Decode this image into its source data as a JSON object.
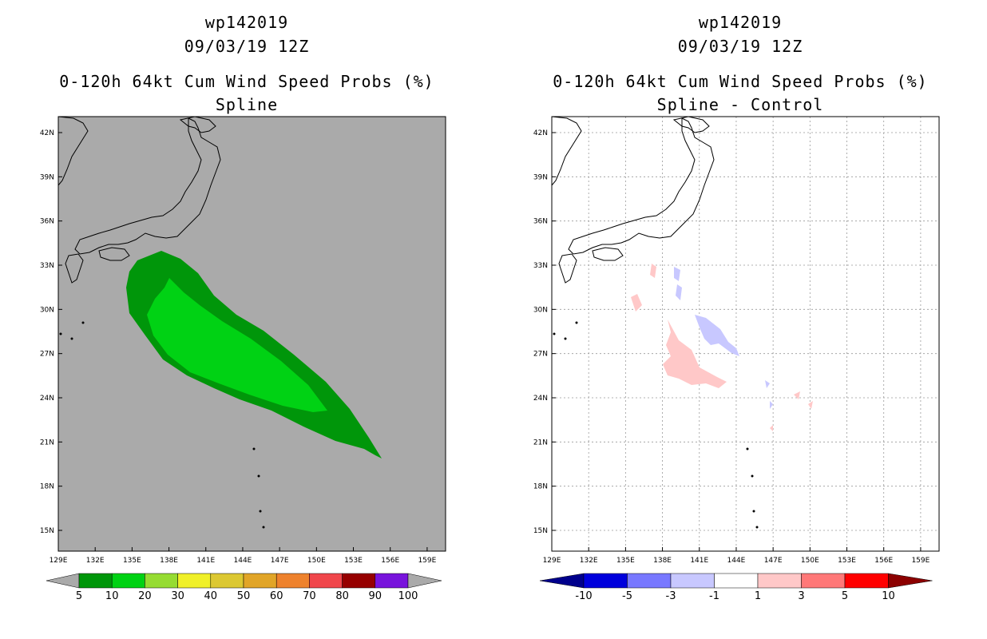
{
  "left": {
    "title_storm": "wp142019",
    "title_date": "09/03/19 12Z",
    "title_product": "0-120h 64kt Cum Wind Speed Probs (%)",
    "title_subtitle": "Spline",
    "background_color": "#aaaaaa",
    "colorbar": {
      "colors": [
        "#00960a",
        "#00d214",
        "#96dc32",
        "#f0f028",
        "#dcc832",
        "#e1a528",
        "#ee822d",
        "#f0464b",
        "#960000",
        "#7814dc"
      ],
      "labels": [
        "5",
        "10",
        "20",
        "30",
        "40",
        "50",
        "60",
        "70",
        "80",
        "90",
        "100"
      ]
    }
  },
  "right": {
    "title_storm": "wp142019",
    "title_date": "09/03/19 12Z",
    "title_product": "0-120h 64kt Cum Wind Speed Probs (%)",
    "title_subtitle": "Spline - Control",
    "background_color": "#ffffff",
    "colorbar": {
      "colors": [
        "#0000dc",
        "#7878ff",
        "#c8c8ff",
        "#ffffff",
        "#ffc8c8",
        "#ff7878",
        "#ff0000"
      ],
      "end_low": "#00008c",
      "end_high": "#8c0000",
      "labels": [
        "-10",
        "-5",
        "-3",
        "-1",
        "1",
        "3",
        "5",
        "10"
      ]
    }
  },
  "map": {
    "lon_labels": [
      "129E",
      "132E",
      "135E",
      "138E",
      "141E",
      "144E",
      "147E",
      "150E",
      "153E",
      "156E",
      "159E"
    ],
    "lat_labels": [
      "42N",
      "39N",
      "36N",
      "33N",
      "30N",
      "27N",
      "24N",
      "21N",
      "18N",
      "15N"
    ]
  }
}
